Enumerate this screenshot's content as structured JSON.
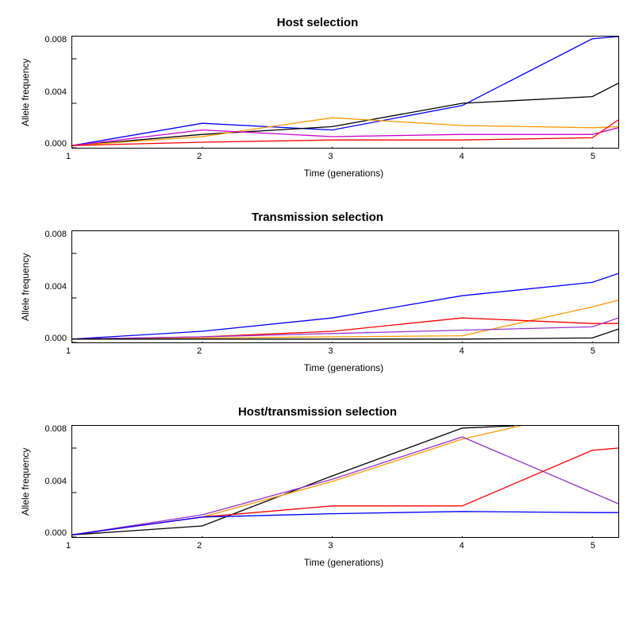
{
  "global": {
    "background_color": "#ffffff",
    "font_family": "Arial, Helvetica, sans-serif",
    "title_fontsize": 15,
    "label_fontsize": 12,
    "tick_fontsize": 11
  },
  "panels": [
    {
      "title": "Host selection",
      "xlabel": "Time (generations)",
      "ylabel": "Allele frequency",
      "xlim": [
        1,
        5.2
      ],
      "ylim": [
        0,
        0.01
      ],
      "xticks": [
        1,
        2,
        3,
        4,
        5
      ],
      "yticks": [
        0.0,
        0.004,
        0.008
      ],
      "ytick_labels": [
        "0.000",
        "0.004",
        "0.008"
      ],
      "line_width": 1.3,
      "box_color": "#000000",
      "series": [
        {
          "color": "#0000ff",
          "x": [
            1,
            2,
            3,
            4,
            5,
            5.2
          ],
          "y": [
            0.0002,
            0.0022,
            0.0016,
            0.0038,
            0.0098,
            0.01
          ]
        },
        {
          "color": "#000000",
          "x": [
            1,
            2,
            3,
            4,
            5,
            5.2
          ],
          "y": [
            0.0002,
            0.0012,
            0.0019,
            0.004,
            0.0046,
            0.0058
          ]
        },
        {
          "color": "#ff9900",
          "x": [
            1,
            2,
            3,
            4,
            5,
            5.2
          ],
          "y": [
            0.0002,
            0.001,
            0.0027,
            0.002,
            0.0018,
            0.0019
          ]
        },
        {
          "color": "#cc00cc",
          "x": [
            1,
            2,
            3,
            4,
            5,
            5.2
          ],
          "y": [
            0.0002,
            0.0016,
            0.001,
            0.0012,
            0.0012,
            0.0018
          ]
        },
        {
          "color": "#ff0000",
          "x": [
            1,
            2,
            3,
            4,
            5,
            5.2
          ],
          "y": [
            0.0002,
            0.0005,
            0.0007,
            0.0007,
            0.0009,
            0.0025
          ]
        }
      ]
    },
    {
      "title": "Transmission selection",
      "xlabel": "Time (generations)",
      "ylabel": "Allele frequency",
      "xlim": [
        1,
        5.2
      ],
      "ylim": [
        0,
        0.01
      ],
      "xticks": [
        1,
        2,
        3,
        4,
        5
      ],
      "yticks": [
        0.0,
        0.004,
        0.008
      ],
      "ytick_labels": [
        "0.000",
        "0.004",
        "0.008"
      ],
      "line_width": 1.3,
      "box_color": "#000000",
      "series": [
        {
          "color": "#0000ff",
          "x": [
            1,
            2,
            3,
            4,
            5,
            5.2
          ],
          "y": [
            0.0003,
            0.001,
            0.0022,
            0.0042,
            0.0054,
            0.0062
          ]
        },
        {
          "color": "#ff9900",
          "x": [
            1,
            2,
            3,
            4,
            5,
            5.2
          ],
          "y": [
            0.0003,
            0.0004,
            0.0005,
            0.0006,
            0.0032,
            0.0038
          ]
        },
        {
          "color": "#ff0000",
          "x": [
            1,
            2,
            3,
            4,
            5,
            5.2
          ],
          "y": [
            0.0003,
            0.0005,
            0.001,
            0.0022,
            0.0017,
            0.0017
          ]
        },
        {
          "color": "#9933cc",
          "x": [
            1,
            2,
            3,
            4,
            5,
            5.2
          ],
          "y": [
            0.0003,
            0.0005,
            0.0008,
            0.0011,
            0.0014,
            0.0022
          ]
        },
        {
          "color": "#000000",
          "x": [
            1,
            2,
            3,
            4,
            5,
            5.2
          ],
          "y": [
            0.0003,
            0.0003,
            0.0003,
            0.0003,
            0.0004,
            0.0012
          ]
        }
      ]
    },
    {
      "title": "Host/transmission selection",
      "xlabel": "Time (generations)",
      "ylabel": "Allele frequency",
      "xlim": [
        1,
        5.2
      ],
      "ylim": [
        0,
        0.01
      ],
      "xticks": [
        1,
        2,
        3,
        4,
        5
      ],
      "yticks": [
        0.0,
        0.004,
        0.008
      ],
      "ytick_labels": [
        "0.000",
        "0.004",
        "0.008"
      ],
      "line_width": 1.3,
      "box_color": "#000000",
      "series": [
        {
          "color": "#000000",
          "x": [
            1,
            2,
            3,
            4,
            4.4
          ],
          "y": [
            0.0002,
            0.001,
            0.0055,
            0.0098,
            0.01
          ]
        },
        {
          "color": "#ff9900",
          "x": [
            1,
            2,
            3,
            4,
            4.45
          ],
          "y": [
            0.0002,
            0.0018,
            0.005,
            0.0088,
            0.01
          ]
        },
        {
          "color": "#9933cc",
          "x": [
            1,
            2,
            3,
            4,
            5,
            5.2
          ],
          "y": [
            0.0002,
            0.002,
            0.0052,
            0.009,
            0.004,
            0.003
          ]
        },
        {
          "color": "#ff0000",
          "x": [
            1,
            2,
            3,
            4,
            5,
            5.2
          ],
          "y": [
            0.0002,
            0.0018,
            0.0028,
            0.0028,
            0.0078,
            0.008
          ]
        },
        {
          "color": "#0000ff",
          "x": [
            1,
            2,
            3,
            4,
            5,
            5.2
          ],
          "y": [
            0.0002,
            0.0018,
            0.0021,
            0.0023,
            0.0022,
            0.0022
          ]
        }
      ]
    }
  ]
}
